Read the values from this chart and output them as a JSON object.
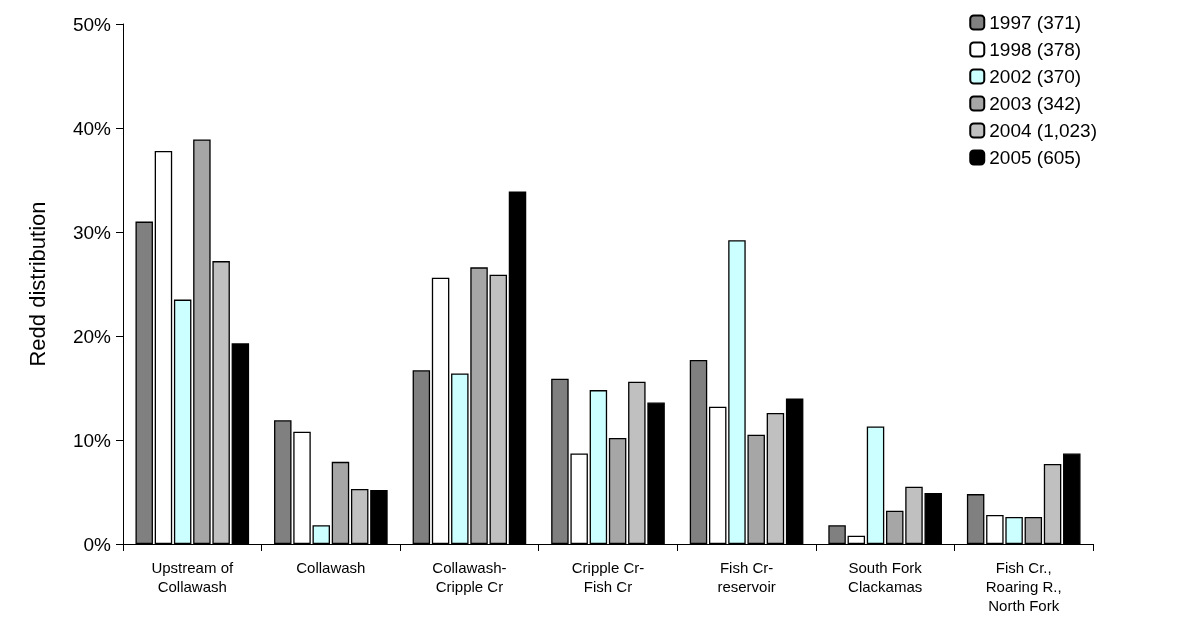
{
  "chart_data": {
    "type": "bar",
    "ylabel": "Redd distribution",
    "categories": [
      "Upstream of\nCollawash",
      "Collawash",
      "Collawash-\nCripple Cr",
      "Cripple Cr-\nFish Cr",
      "Fish Cr-\nreservoir",
      "South Fork\nClackamas",
      "Fish Cr.,\nRoaring R.,\nNorth Fork"
    ],
    "series": [
      {
        "name": "1997 (371)",
        "color": "#808080",
        "values": [
          31,
          11.9,
          16.7,
          15.9,
          17.7,
          1.8,
          4.8
        ]
      },
      {
        "name": "1998 (378)",
        "color": "#ffffff",
        "values": [
          37.8,
          10.8,
          25.6,
          8.7,
          13.2,
          0.8,
          2.8
        ]
      },
      {
        "name": "2002 (370)",
        "color": "#ccffff",
        "values": [
          23.5,
          1.8,
          16.4,
          14.8,
          29.2,
          11.3,
          2.6
        ]
      },
      {
        "name": "2003 (342)",
        "color": "#a6a6a6",
        "values": [
          38.9,
          7.9,
          26.6,
          10.2,
          10.5,
          3.2,
          2.6
        ]
      },
      {
        "name": "2004 (1,023)",
        "color": "#c0c0c0",
        "values": [
          27.2,
          5.3,
          25.9,
          15.6,
          12.6,
          5.5,
          7.7
        ]
      },
      {
        "name": "2005 (605)",
        "color": "#000000",
        "values": [
          19.3,
          5.2,
          33.9,
          13.6,
          14.0,
          4.9,
          8.7
        ]
      }
    ],
    "ylim": [
      0,
      50
    ],
    "yticks": [
      {
        "value": 0,
        "label": "0%"
      },
      {
        "value": 10,
        "label": "10%"
      },
      {
        "value": 20,
        "label": "20%"
      },
      {
        "value": 30,
        "label": "30%"
      },
      {
        "value": 40,
        "label": "40%"
      },
      {
        "value": 50,
        "label": "50%"
      }
    ],
    "grid": false,
    "legend": "top right"
  }
}
